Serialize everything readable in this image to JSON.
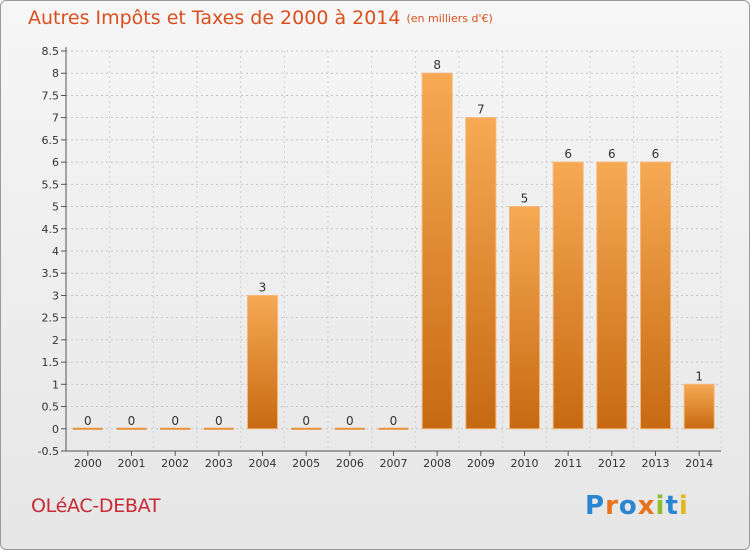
{
  "header": {
    "title": "Autres Impôts et Taxes de 2000 à 2014",
    "subtitle": "(en milliers d'€)"
  },
  "footer": {
    "commune": "OLéAC-DEBAT",
    "brand": "Proxiti"
  },
  "colors": {
    "title": "#d94f1f",
    "commune": "#c82a36",
    "bar_light": "#f6a550",
    "bar_dark": "#c96a10",
    "grid": "#bfbfbf"
  },
  "chart_data": {
    "type": "bar",
    "title": "Autres Impôts et Taxes de 2000 à 2014",
    "subtitle": "(en milliers d'€)",
    "categories": [
      "2000",
      "2001",
      "2002",
      "2003",
      "2004",
      "2005",
      "2006",
      "2007",
      "2008",
      "2009",
      "2010",
      "2011",
      "2012",
      "2013",
      "2014"
    ],
    "values": [
      0,
      0,
      0,
      0,
      3,
      0,
      0,
      0,
      8,
      7,
      5,
      6,
      6,
      6,
      1
    ],
    "data_labels": [
      "0",
      "0",
      "0",
      "0",
      "3",
      "0",
      "0",
      "0",
      "8",
      "7",
      "5",
      "6",
      "6",
      "6",
      "1"
    ],
    "y_ticks": [
      "-0.5",
      "0",
      "0.5",
      "1",
      "1.5",
      "2",
      "2.5",
      "3",
      "3.5",
      "4",
      "4.5",
      "5",
      "5.5",
      "6",
      "6.5",
      "7",
      "7.5",
      "8",
      "8.5"
    ],
    "ylim": [
      -0.5,
      8.5
    ],
    "grid": true,
    "xlabel": "",
    "ylabel": ""
  }
}
